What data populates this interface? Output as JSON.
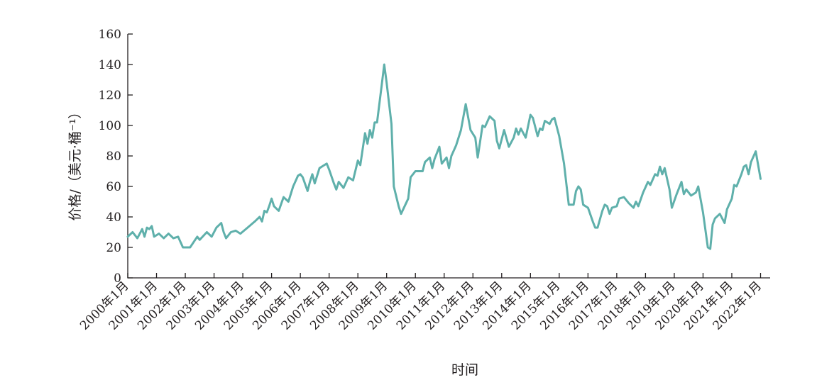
{
  "chart_data": {
    "type": "line",
    "xlabel": "时间",
    "ylabel": "价格/（美元·桶⁻¹）",
    "ylim": [
      0,
      160
    ],
    "yticks": [
      0,
      20,
      40,
      60,
      80,
      100,
      120,
      140,
      160
    ],
    "xlim": [
      "2000-01",
      "2022-05"
    ],
    "xticks": [
      "2000年1月",
      "2001年1月",
      "2002年1月",
      "2003年1月",
      "2004年1月",
      "2005年1月",
      "2006年1月",
      "2007年1月",
      "2008年1月",
      "2009年1月",
      "2010年1月",
      "2011年1月",
      "2012年1月",
      "2013年1月",
      "2014年1月",
      "2015年1月",
      "2016年1月",
      "2017年1月",
      "2018年1月",
      "2019年1月",
      "2020年1月",
      "2021年1月",
      "2022年1月"
    ],
    "grid": false,
    "series": [
      {
        "color": "#5fb0ab",
        "points": [
          [
            "2000-01",
            27
          ],
          [
            "2000-03",
            30
          ],
          [
            "2000-05",
            26
          ],
          [
            "2000-07",
            32
          ],
          [
            "2000-08",
            27
          ],
          [
            "2000-09",
            33
          ],
          [
            "2000-10",
            32
          ],
          [
            "2000-11",
            34
          ],
          [
            "2000-12",
            27
          ],
          [
            "2001-02",
            29
          ],
          [
            "2001-04",
            26
          ],
          [
            "2001-06",
            29
          ],
          [
            "2001-08",
            26
          ],
          [
            "2001-10",
            27
          ],
          [
            "2001-12",
            20
          ],
          [
            "2002-02",
            20
          ],
          [
            "2002-03",
            20
          ],
          [
            "2002-06",
            27
          ],
          [
            "2002-07",
            25
          ],
          [
            "2002-10",
            30
          ],
          [
            "2002-12",
            27
          ],
          [
            "2003-02",
            33
          ],
          [
            "2003-04",
            36
          ],
          [
            "2003-05",
            30
          ],
          [
            "2003-06",
            26
          ],
          [
            "2003-08",
            30
          ],
          [
            "2003-10",
            31
          ],
          [
            "2003-12",
            29
          ],
          [
            "2004-03",
            33
          ],
          [
            "2004-06",
            37
          ],
          [
            "2004-08",
            40
          ],
          [
            "2004-09",
            37
          ],
          [
            "2004-10",
            44
          ],
          [
            "2004-11",
            43
          ],
          [
            "2004-12",
            47
          ],
          [
            "2005-01",
            52
          ],
          [
            "2005-02",
            47
          ],
          [
            "2005-04",
            44
          ],
          [
            "2005-06",
            53
          ],
          [
            "2005-08",
            50
          ],
          [
            "2005-10",
            60
          ],
          [
            "2005-12",
            67
          ],
          [
            "2006-01",
            68
          ],
          [
            "2006-02",
            66
          ],
          [
            "2006-04",
            57
          ],
          [
            "2006-05",
            63
          ],
          [
            "2006-06",
            68
          ],
          [
            "2006-07",
            62
          ],
          [
            "2006-09",
            72
          ],
          [
            "2006-11",
            74
          ],
          [
            "2006-12",
            75
          ],
          [
            "2007-01",
            71
          ],
          [
            "2007-03",
            62
          ],
          [
            "2007-04",
            58
          ],
          [
            "2007-05",
            63
          ],
          [
            "2007-07",
            59
          ],
          [
            "2007-09",
            66
          ],
          [
            "2007-11",
            64
          ],
          [
            "2008-01",
            77
          ],
          [
            "2008-02",
            74
          ],
          [
            "2008-04",
            95
          ],
          [
            "2008-05",
            88
          ],
          [
            "2008-06",
            97
          ],
          [
            "2008-07",
            92
          ],
          [
            "2008-08",
            102
          ],
          [
            "2008-09",
            102
          ],
          [
            "2008-11",
            127
          ],
          [
            "2008-12",
            140
          ],
          [
            "2009-01",
            128
          ],
          [
            "2009-03",
            101
          ],
          [
            "2009-04",
            60
          ],
          [
            "2009-06",
            47
          ],
          [
            "2009-07",
            42
          ],
          [
            "2009-10",
            52
          ],
          [
            "2009-11",
            66
          ],
          [
            "2010-01",
            70
          ],
          [
            "2010-04",
            70
          ],
          [
            "2010-05",
            76
          ],
          [
            "2010-07",
            79
          ],
          [
            "2010-08",
            72
          ],
          [
            "2010-09",
            78
          ],
          [
            "2010-11",
            86
          ],
          [
            "2010-12",
            75
          ],
          [
            "2011-02",
            79
          ],
          [
            "2011-03",
            72
          ],
          [
            "2011-04",
            80
          ],
          [
            "2011-06",
            87
          ],
          [
            "2011-08",
            97
          ],
          [
            "2011-10",
            114
          ],
          [
            "2011-12",
            97
          ],
          [
            "2012-02",
            92
          ],
          [
            "2012-03",
            79
          ],
          [
            "2012-05",
            100
          ],
          [
            "2012-06",
            99
          ],
          [
            "2012-08",
            106
          ],
          [
            "2012-10",
            103
          ],
          [
            "2012-11",
            90
          ],
          [
            "2012-12",
            85
          ],
          [
            "2013-02",
            97
          ],
          [
            "2013-04",
            86
          ],
          [
            "2013-06",
            92
          ],
          [
            "2013-07",
            98
          ],
          [
            "2013-08",
            94
          ],
          [
            "2013-09",
            98
          ],
          [
            "2013-11",
            92
          ],
          [
            "2014-01",
            107
          ],
          [
            "2014-02",
            105
          ],
          [
            "2014-04",
            93
          ],
          [
            "2014-05",
            98
          ],
          [
            "2014-06",
            97
          ],
          [
            "2014-07",
            103
          ],
          [
            "2014-09",
            101
          ],
          [
            "2014-10",
            104
          ],
          [
            "2014-11",
            105
          ],
          [
            "2015-01",
            93
          ],
          [
            "2015-03",
            75
          ],
          [
            "2015-05",
            48
          ],
          [
            "2015-07",
            48
          ],
          [
            "2015-08",
            57
          ],
          [
            "2015-09",
            60
          ],
          [
            "2015-10",
            58
          ],
          [
            "2015-11",
            48
          ],
          [
            "2016-01",
            46
          ],
          [
            "2016-03",
            37
          ],
          [
            "2016-04",
            33
          ],
          [
            "2016-05",
            33
          ],
          [
            "2016-07",
            44
          ],
          [
            "2016-08",
            48
          ],
          [
            "2016-09",
            47
          ],
          [
            "2016-10",
            42
          ],
          [
            "2016-11",
            46
          ],
          [
            "2017-01",
            47
          ],
          [
            "2017-02",
            52
          ],
          [
            "2017-04",
            53
          ],
          [
            "2017-06",
            49
          ],
          [
            "2017-08",
            46
          ],
          [
            "2017-09",
            50
          ],
          [
            "2017-10",
            47
          ],
          [
            "2017-12",
            56
          ],
          [
            "2018-02",
            63
          ],
          [
            "2018-03",
            61
          ],
          [
            "2018-05",
            68
          ],
          [
            "2018-06",
            67
          ],
          [
            "2018-07",
            73
          ],
          [
            "2018-08",
            68
          ],
          [
            "2018-09",
            72
          ],
          [
            "2018-11",
            58
          ],
          [
            "2018-12",
            46
          ],
          [
            "2019-02",
            55
          ],
          [
            "2019-04",
            63
          ],
          [
            "2019-05",
            55
          ],
          [
            "2019-06",
            58
          ],
          [
            "2019-08",
            54
          ],
          [
            "2019-10",
            56
          ],
          [
            "2019-11",
            60
          ],
          [
            "2020-01",
            43
          ],
          [
            "2020-03",
            20
          ],
          [
            "2020-04",
            19
          ],
          [
            "2020-05",
            35
          ],
          [
            "2020-06",
            39
          ],
          [
            "2020-08",
            42
          ],
          [
            "2020-10",
            36
          ],
          [
            "2020-11",
            45
          ],
          [
            "2021-01",
            52
          ],
          [
            "2021-02",
            61
          ],
          [
            "2021-03",
            60
          ],
          [
            "2021-05",
            68
          ],
          [
            "2021-06",
            73
          ],
          [
            "2021-07",
            74
          ],
          [
            "2021-08",
            68
          ],
          [
            "2021-09",
            76
          ],
          [
            "2021-11",
            83
          ],
          [
            "2022-01",
            65
          ]
        ]
      }
    ]
  }
}
